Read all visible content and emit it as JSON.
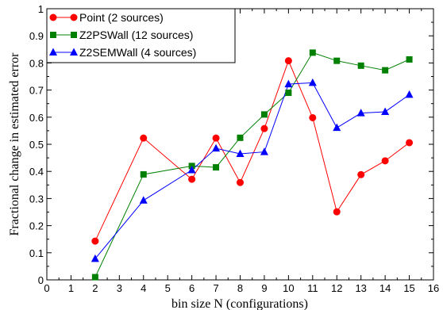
{
  "chart_data": {
    "type": "line",
    "xlabel": "bin size N (configurations)",
    "ylabel": "Fractional change in estimated error",
    "xlim": [
      0,
      16
    ],
    "ylim": [
      0,
      1
    ],
    "xticks": [
      0,
      1,
      2,
      3,
      4,
      5,
      6,
      7,
      8,
      9,
      10,
      11,
      12,
      13,
      14,
      15,
      16
    ],
    "xtick_labels": [
      "0",
      "1",
      "2",
      "3",
      "4",
      "5",
      "6",
      "7",
      "8",
      "9",
      "10",
      "11",
      "12",
      "13",
      "14",
      "15",
      "16"
    ],
    "yticks": [
      0,
      0.1,
      0.2,
      0.3,
      0.4,
      0.5,
      0.6,
      0.7,
      0.8,
      0.9,
      1
    ],
    "ytick_labels": [
      "0",
      "0.1",
      "0.2",
      "0.3",
      "0.4",
      "0.5",
      "0.6",
      "0.7",
      "0.8",
      "0.9",
      "1"
    ],
    "grid": false,
    "legend_position": "top-left",
    "series": [
      {
        "name": "Point (2 sources)",
        "color": "#ff0000",
        "marker": "circle",
        "x": [
          2,
          4,
          6,
          7,
          8,
          9,
          10,
          11,
          12,
          13,
          14,
          15
        ],
        "y": [
          0.143,
          0.523,
          0.371,
          0.523,
          0.359,
          0.558,
          0.808,
          0.598,
          0.251,
          0.388,
          0.439,
          0.506
        ]
      },
      {
        "name": "Z2PSWall (12 sources)",
        "color": "#008000",
        "marker": "square",
        "x": [
          2,
          4,
          6,
          7,
          8,
          9,
          10,
          11,
          12,
          13,
          14,
          15
        ],
        "y": [
          0.01,
          0.389,
          0.42,
          0.415,
          0.524,
          0.61,
          0.69,
          0.838,
          0.808,
          0.79,
          0.773,
          0.813
        ]
      },
      {
        "name": "Z2SEMWall (4 sources)",
        "color": "#0000ff",
        "marker": "triangle",
        "x": [
          2,
          4,
          6,
          7,
          8,
          9,
          10,
          11,
          12,
          13,
          14,
          15
        ],
        "y": [
          0.078,
          0.293,
          0.405,
          0.485,
          0.465,
          0.472,
          0.722,
          0.727,
          0.561,
          0.615,
          0.62,
          0.683
        ]
      }
    ]
  }
}
